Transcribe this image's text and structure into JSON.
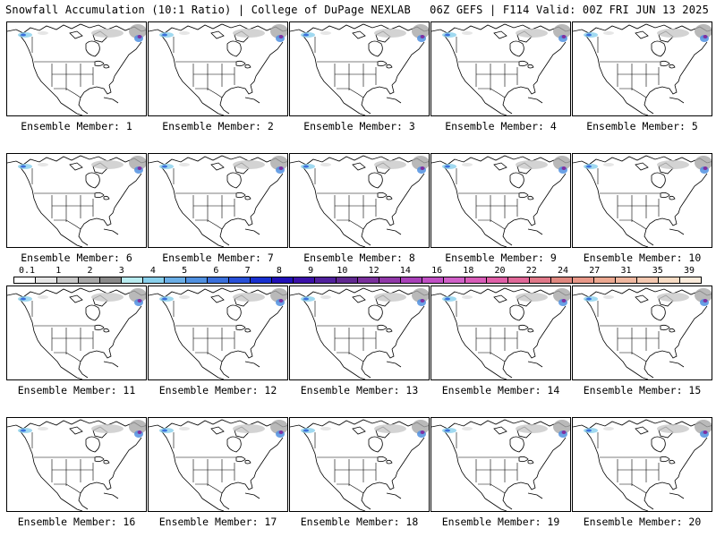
{
  "header": {
    "left": "Snowfall Accumulation (10:1 Ratio) | College of DuPage NEXLAB",
    "right": "06Z GEFS | F114 Valid: 00Z FRI JUN 13 2025"
  },
  "panels": [
    {
      "label": "Ensemble Member: 1"
    },
    {
      "label": "Ensemble Member: 2"
    },
    {
      "label": "Ensemble Member: 3"
    },
    {
      "label": "Ensemble Member: 4"
    },
    {
      "label": "Ensemble Member: 5"
    },
    {
      "label": "Ensemble Member: 6"
    },
    {
      "label": "Ensemble Member: 7"
    },
    {
      "label": "Ensemble Member: 8"
    },
    {
      "label": "Ensemble Member: 9"
    },
    {
      "label": "Ensemble Member: 10"
    },
    {
      "label": "Ensemble Member: 11"
    },
    {
      "label": "Ensemble Member: 12"
    },
    {
      "label": "Ensemble Member: 13"
    },
    {
      "label": "Ensemble Member: 14"
    },
    {
      "label": "Ensemble Member: 15"
    },
    {
      "label": "Ensemble Member: 16"
    },
    {
      "label": "Ensemble Member: 17"
    },
    {
      "label": "Ensemble Member: 18"
    },
    {
      "label": "Ensemble Member: 19"
    },
    {
      "label": "Ensemble Member: 20"
    }
  ],
  "colorbar": {
    "tick_labels": [
      "0.1",
      "1",
      "2",
      "3",
      "4",
      "5",
      "6",
      "7",
      "8",
      "9",
      "10",
      "12",
      "14",
      "16",
      "18",
      "20",
      "22",
      "24",
      "27",
      "31",
      "35",
      "39"
    ],
    "colors": [
      "#ffffff",
      "#e6e6e6",
      "#c8c8c8",
      "#a8a8a8",
      "#8a8a8a",
      "#b8ecf0",
      "#88d0ec",
      "#6aaee6",
      "#5090e0",
      "#3a70dc",
      "#2850d8",
      "#1830d0",
      "#2010b8",
      "#3a10a8",
      "#50209c",
      "#602890",
      "#7a309c",
      "#9038a8",
      "#a840b8",
      "#c050c4",
      "#d060c8",
      "#d85cb8",
      "#e060a8",
      "#e06898",
      "#e07888",
      "#e08880",
      "#e89888",
      "#eca890",
      "#f0b8a0",
      "#f4c8b0",
      "#f8dcc4",
      "#fcecdc"
    ]
  }
}
